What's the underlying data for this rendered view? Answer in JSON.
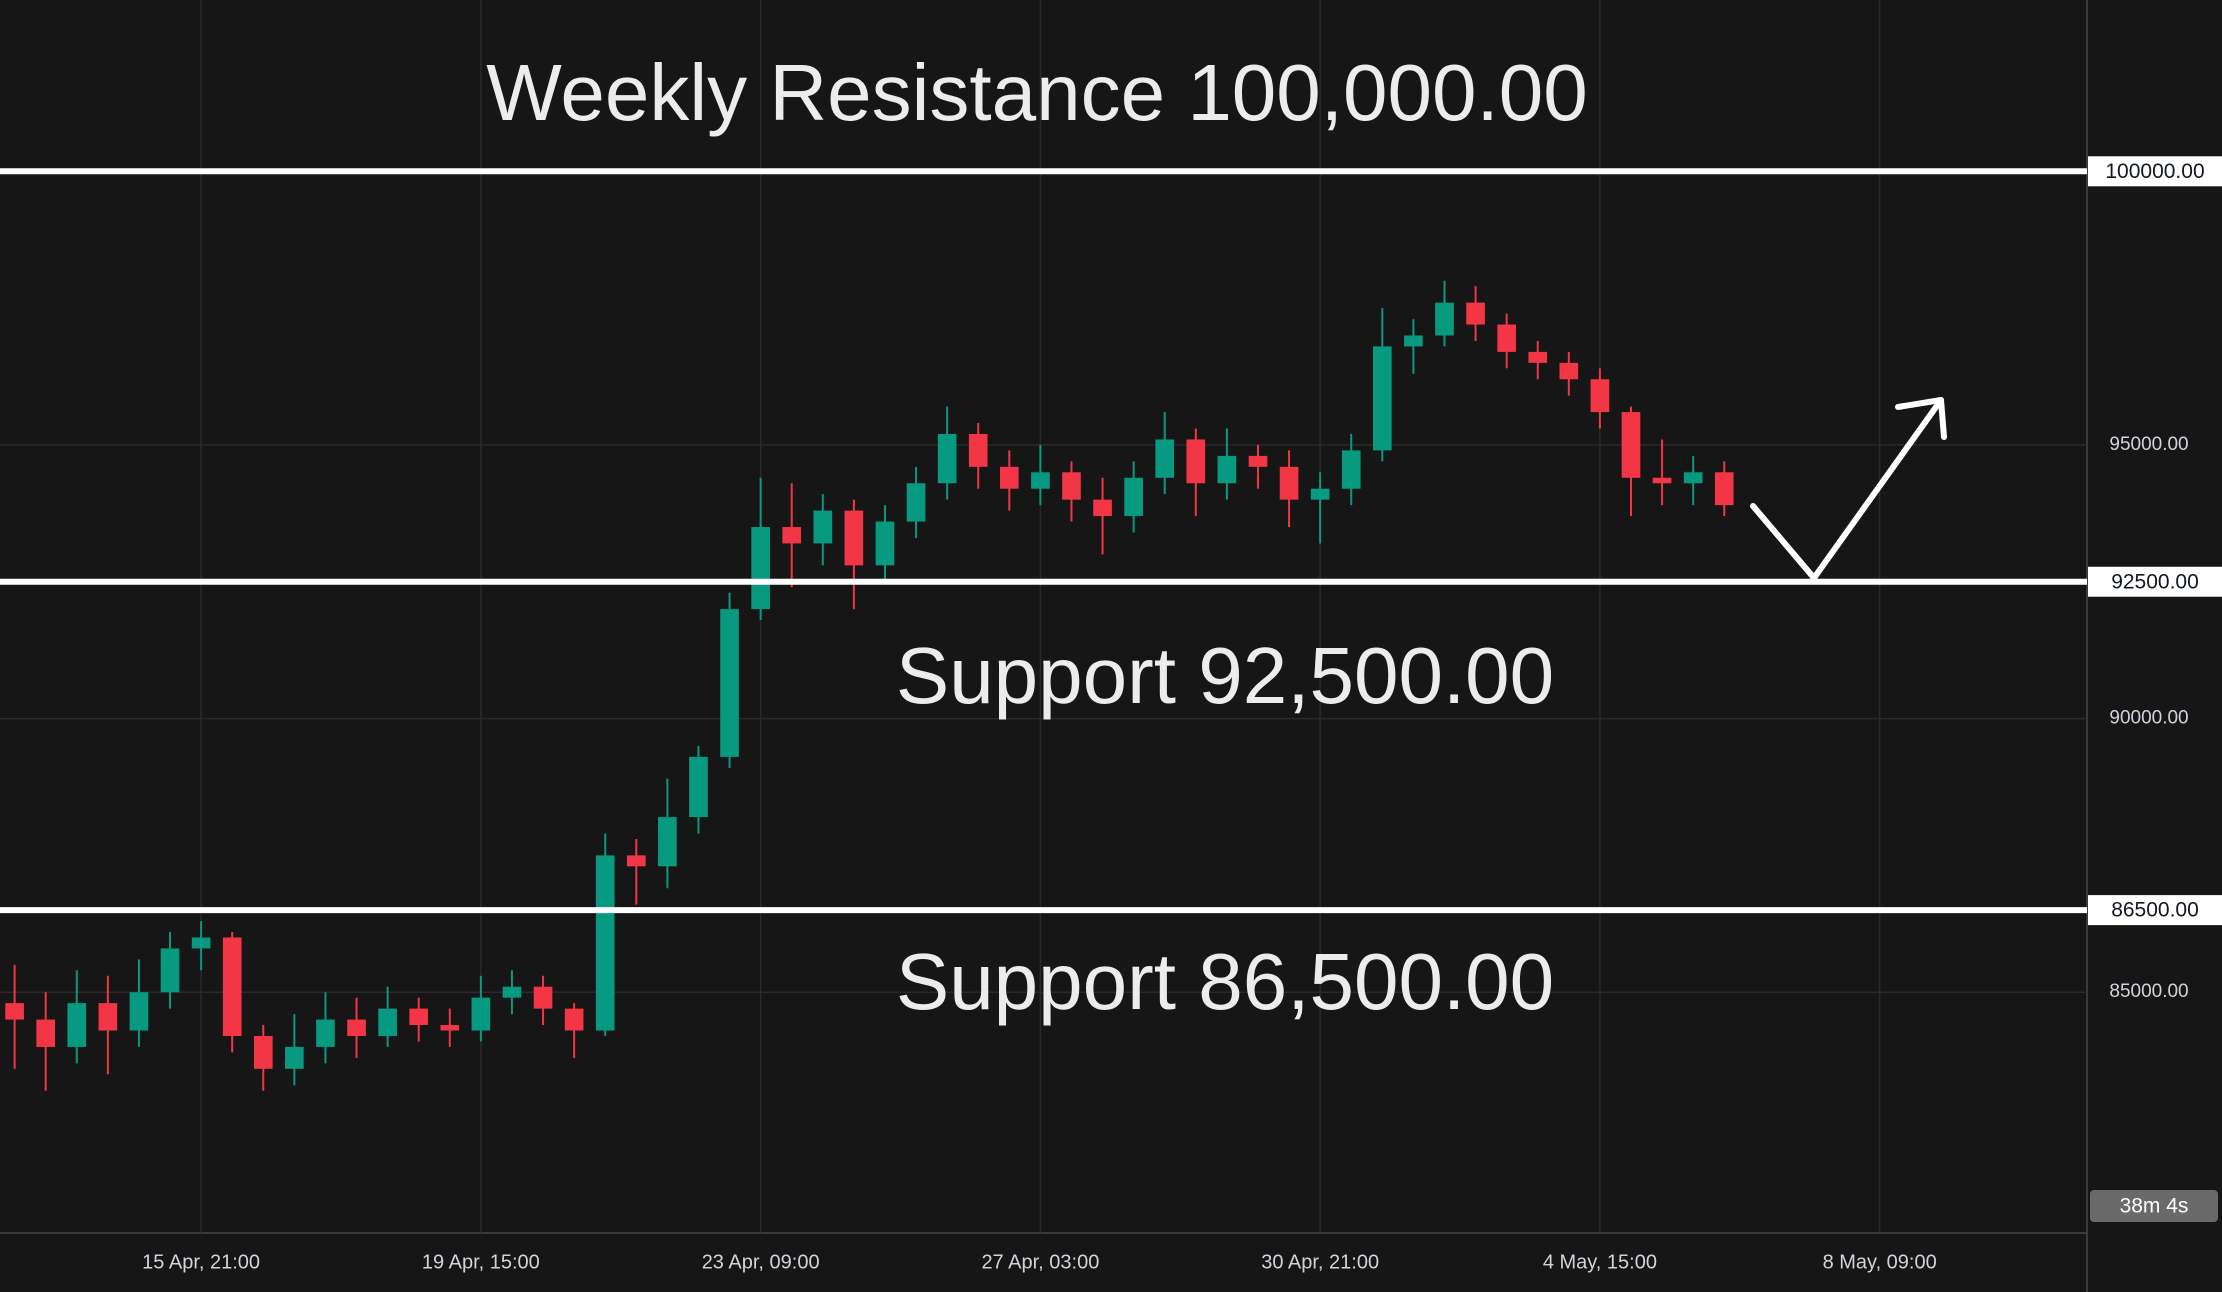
{
  "chart_data": {
    "type": "candlestick",
    "x": [
      -60,
      -50,
      -40,
      -30,
      -20,
      -10,
      0,
      10,
      20,
      30,
      40,
      50,
      60,
      70,
      80,
      90,
      100,
      110,
      120,
      130,
      140,
      150,
      160,
      170,
      180,
      190,
      200,
      210,
      220,
      230,
      240,
      250,
      260,
      270,
      280,
      290,
      300,
      310,
      320,
      330,
      340,
      350,
      360,
      370,
      380,
      390,
      400,
      410,
      420,
      430,
      440,
      450,
      460,
      470,
      480,
      490
    ],
    "open": [
      84800,
      84500,
      84000,
      84800,
      84300,
      85000,
      85800,
      86000,
      84200,
      83600,
      84000,
      84500,
      84200,
      84700,
      84400,
      84300,
      84900,
      85100,
      84700,
      84300,
      87500,
      87300,
      88200,
      89300,
      92000,
      93500,
      93200,
      93800,
      92800,
      93600,
      94300,
      95200,
      94600,
      94200,
      94500,
      94000,
      93700,
      94400,
      95100,
      94300,
      94800,
      94600,
      94000,
      94200,
      94900,
      96800,
      97000,
      97600,
      97200,
      96700,
      96500,
      96200,
      95600,
      94400,
      94300,
      94500
    ],
    "high": [
      85500,
      85000,
      85400,
      85300,
      85600,
      86100,
      86300,
      86100,
      84400,
      84600,
      85000,
      84900,
      85100,
      84900,
      84700,
      85300,
      85400,
      85300,
      84800,
      87900,
      87800,
      88900,
      89500,
      92300,
      94400,
      94300,
      94100,
      94000,
      93900,
      94600,
      95700,
      95400,
      94900,
      95000,
      94700,
      94400,
      94700,
      95600,
      95300,
      95300,
      95000,
      94900,
      94500,
      95200,
      97500,
      97300,
      98000,
      97900,
      97400,
      96900,
      96700,
      96400,
      95700,
      95100,
      94800,
      94700
    ],
    "low": [
      83600,
      83200,
      83700,
      83500,
      84000,
      84700,
      85400,
      83900,
      83200,
      83300,
      83700,
      83800,
      84000,
      84100,
      84000,
      84100,
      84600,
      84400,
      83800,
      84200,
      86600,
      86900,
      87900,
      89100,
      91800,
      92400,
      92800,
      92000,
      92500,
      93300,
      94000,
      94200,
      93800,
      93900,
      93600,
      93000,
      93400,
      94100,
      93700,
      94000,
      94200,
      93500,
      93200,
      93900,
      94700,
      96300,
      96800,
      96900,
      96400,
      96200,
      95900,
      95300,
      93700,
      93900,
      93900,
      93700
    ],
    "close": [
      84500,
      84000,
      84800,
      84300,
      85000,
      85800,
      86000,
      84200,
      83600,
      84000,
      84500,
      84200,
      84700,
      84400,
      84300,
      84900,
      85100,
      84700,
      84300,
      87500,
      87300,
      88200,
      89300,
      92000,
      93500,
      93200,
      93800,
      92800,
      93600,
      94300,
      95200,
      94600,
      94200,
      94500,
      94000,
      93700,
      94400,
      95100,
      94300,
      94800,
      94600,
      94000,
      94200,
      94900,
      96800,
      97000,
      97600,
      97200,
      96700,
      96500,
      96200,
      95600,
      94400,
      94300,
      94500,
      93900
    ],
    "up_color": "#089981",
    "down_color": "#f23645",
    "xlim": [
      -64.7,
      606.7
    ],
    "xticks": [
      {
        "value": 0,
        "label": "15 Apr, 21:00"
      },
      {
        "value": 90,
        "label": "19 Apr, 15:00"
      },
      {
        "value": 180,
        "label": "23 Apr, 09:00"
      },
      {
        "value": 270,
        "label": "27 Apr, 03:00"
      },
      {
        "value": 360,
        "label": "30 Apr, 21:00"
      },
      {
        "value": 450,
        "label": "4 May, 15:00"
      },
      {
        "value": 540,
        "label": "8 May, 09:00"
      }
    ],
    "ylim": [
      80600,
      103130
    ],
    "yticks": [
      {
        "value": 95000,
        "label": "95000.00"
      },
      {
        "value": 90000,
        "label": "90000.00"
      },
      {
        "value": 85000,
        "label": "85000.00"
      }
    ],
    "levels": [
      {
        "value": 100000,
        "label": "100000.00",
        "annotation": "Weekly Resistance 100,000.00"
      },
      {
        "value": 92500,
        "label": "92500.00",
        "annotation": "Support 92,500.00"
      },
      {
        "value": 86500,
        "label": "86500.00",
        "annotation": "Support 86,500.00"
      }
    ],
    "countdown": "38m 4s",
    "grid": true
  }
}
